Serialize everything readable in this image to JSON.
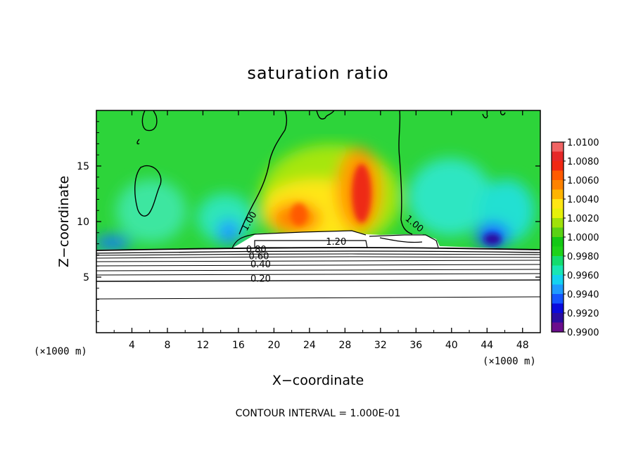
{
  "chart_data": {
    "type": "heatmap",
    "title": "saturation ratio",
    "xlabel": "X−coordinate",
    "ylabel": "Z−coordinate",
    "x_unit_left": "(×1000 m)",
    "x_unit_right": "(×1000 m)",
    "xlim": [
      0,
      50
    ],
    "ylim": [
      0,
      20
    ],
    "xticks": [
      4,
      8,
      12,
      16,
      20,
      24,
      28,
      32,
      36,
      40,
      44,
      48
    ],
    "yticks": [
      5,
      10,
      15
    ],
    "colorbar": {
      "levels": [
        0.99,
        0.991,
        0.992,
        0.993,
        0.994,
        0.995,
        0.996,
        0.997,
        0.998,
        0.999,
        1.0,
        1.001,
        1.002,
        1.003,
        1.004,
        1.005,
        1.006,
        1.007,
        1.008,
        1.009,
        1.01
      ],
      "labels": [
        "0.9900",
        "0.9920",
        "0.9940",
        "0.9960",
        "0.9980",
        "1.0000",
        "1.0020",
        "1.0040",
        "1.0060",
        "1.0080",
        "1.0100"
      ],
      "label_values": [
        0.99,
        0.992,
        0.994,
        0.996,
        0.998,
        1.0,
        1.002,
        1.004,
        1.006,
        1.008,
        1.01
      ],
      "colors": [
        "#6a0d8c",
        "#2a0da0",
        "#0a0adc",
        "#1455ff",
        "#1e9bff",
        "#14d2f0",
        "#19e6b4",
        "#14dc6e",
        "#1ed219",
        "#14c814",
        "#5ad214",
        "#a0e10a",
        "#e6f00a",
        "#ffe614",
        "#ffb400",
        "#ff8200",
        "#ff5a00",
        "#f02814",
        "#e62828",
        "#f06464",
        "#f5a0a0"
      ]
    },
    "contour_labels": [
      {
        "text": "1.00",
        "x": 17.5,
        "y": 9.9,
        "angle": -60
      },
      {
        "text": "1.00",
        "x": 35.6,
        "y": 9.6,
        "angle": 40
      },
      {
        "text": "1.20",
        "x": 27.0,
        "y": 7.9,
        "angle": 0
      },
      {
        "text": "0.80",
        "x": 18.0,
        "y": 7.2,
        "angle": 0
      },
      {
        "text": "0.60",
        "x": 18.3,
        "y": 6.6,
        "angle": 0
      },
      {
        "text": "0.40",
        "x": 18.5,
        "y": 5.9,
        "angle": 0
      },
      {
        "text": "0.20",
        "x": 18.5,
        "y": 4.6,
        "angle": 0
      }
    ],
    "contour_interval": "CONTOUR INTERVAL = 1.000E-01"
  }
}
